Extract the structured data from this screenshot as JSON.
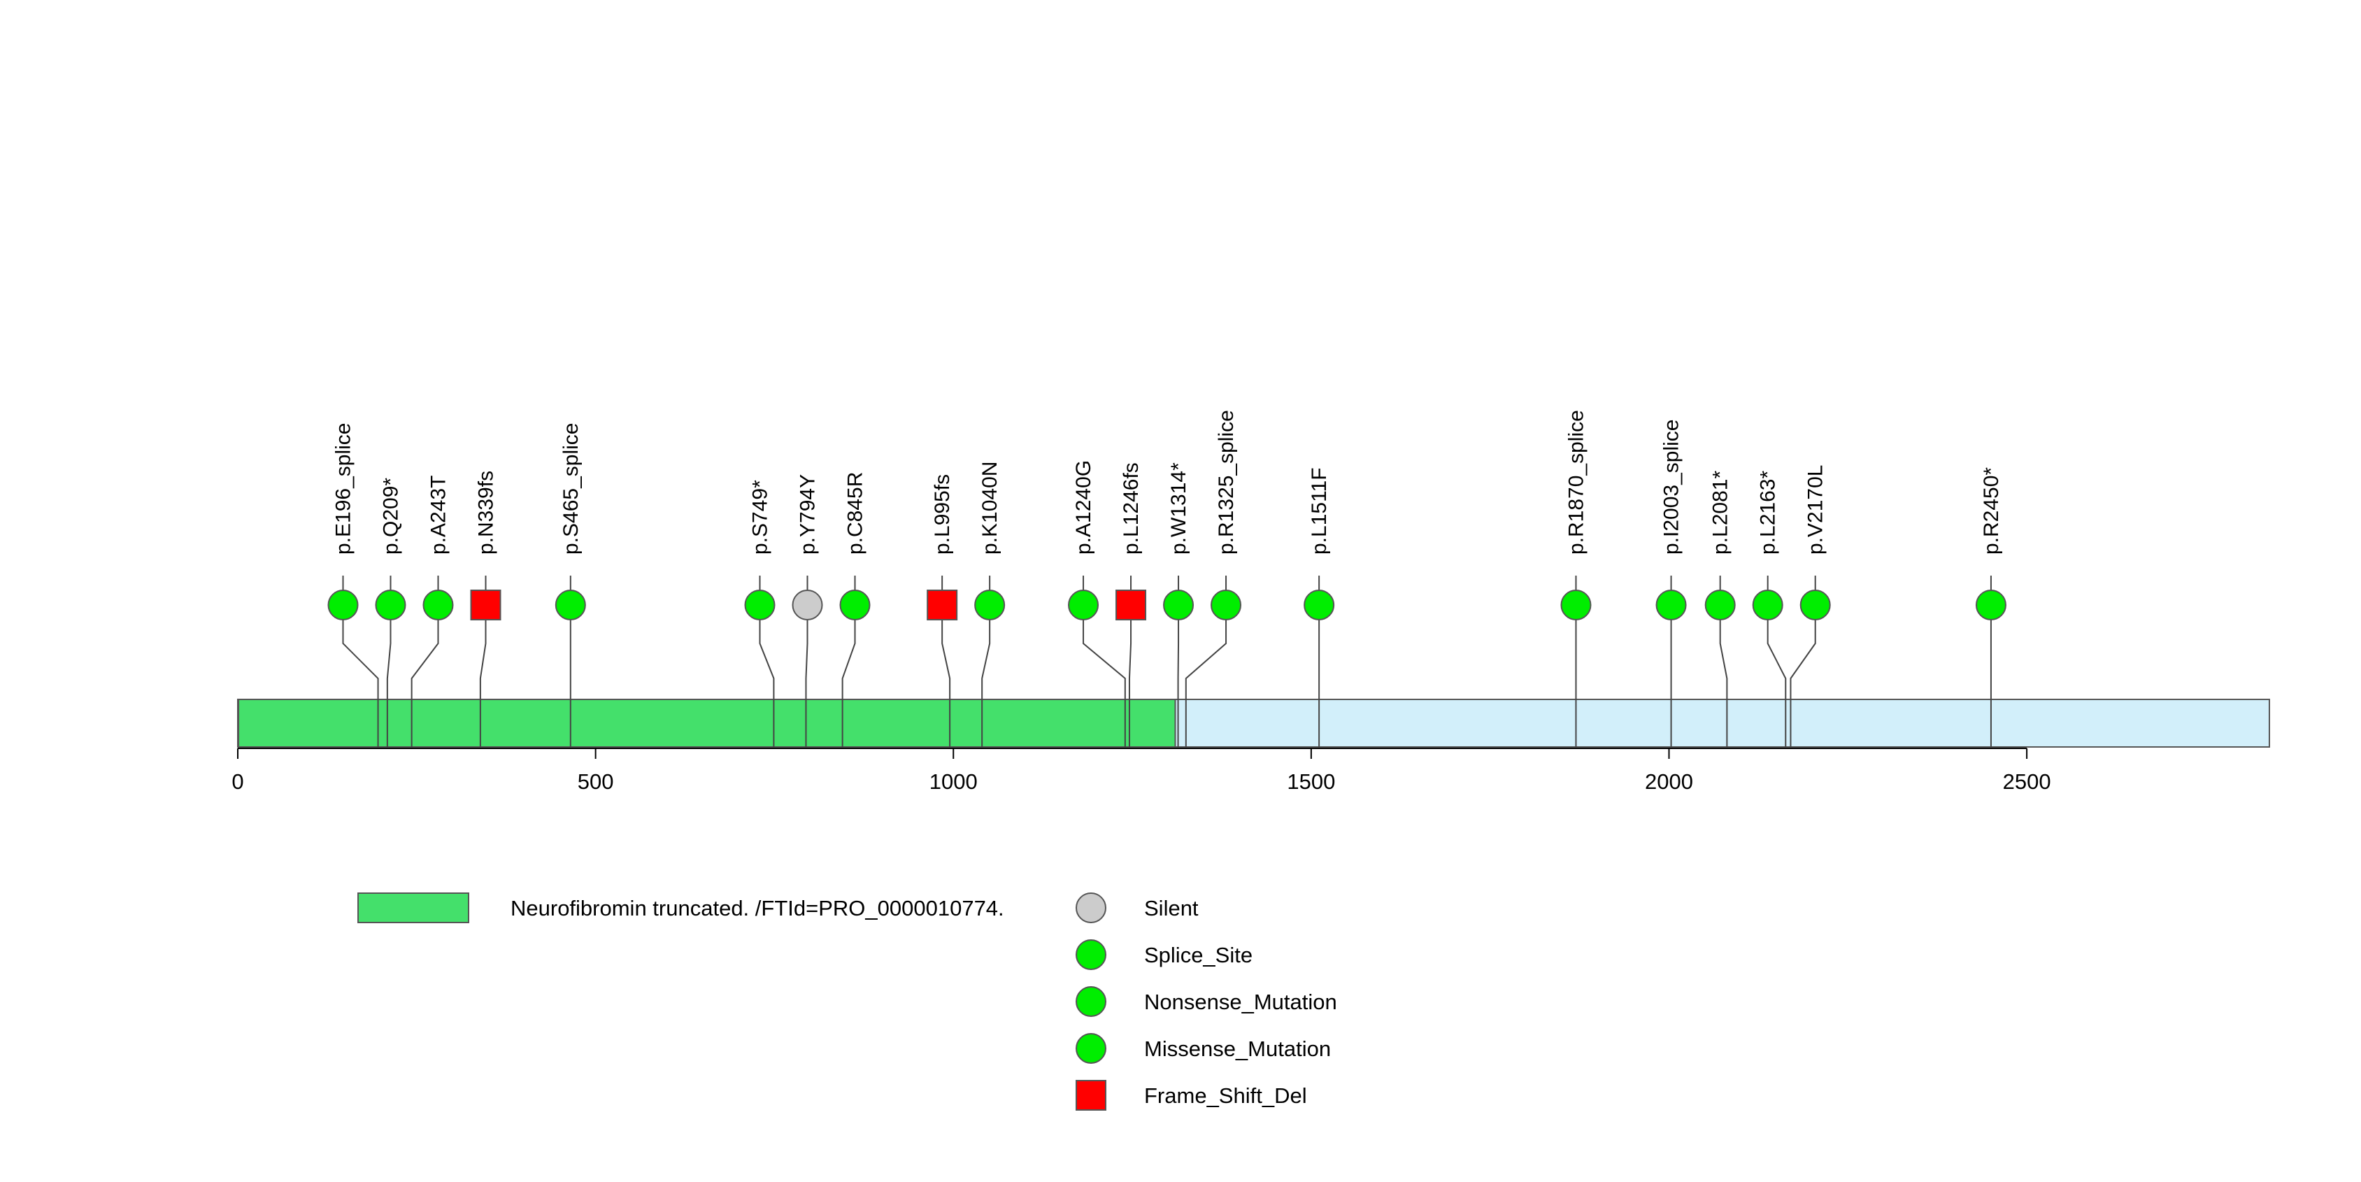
{
  "chart_data": {
    "type": "lollipop",
    "x_axis": {
      "min": 0,
      "max": 2839,
      "ticks": [
        0,
        500,
        1000,
        1500,
        2000,
        2500
      ],
      "tick_labels": [
        "0",
        "500",
        "1000",
        "1500",
        "2000",
        "2500"
      ]
    },
    "protein": {
      "length": 2839,
      "domains": [
        {
          "name": "Neurofibromin truncated. /FTId=PRO_0000010774.",
          "start": 1,
          "end": 1310,
          "color": "#44e06b"
        }
      ],
      "remainder_color": "#d2effa"
    },
    "mutations": [
      {
        "label": "p.E196_splice",
        "position": 196,
        "type": "Splice_Site"
      },
      {
        "label": "p.Q209*",
        "position": 209,
        "type": "Nonsense_Mutation"
      },
      {
        "label": "p.A243T",
        "position": 243,
        "type": "Missense_Mutation"
      },
      {
        "label": "p.N339fs",
        "position": 339,
        "type": "Frame_Shift_Del"
      },
      {
        "label": "p.S465_splice",
        "position": 465,
        "type": "Splice_Site"
      },
      {
        "label": "p.S749*",
        "position": 749,
        "type": "Nonsense_Mutation"
      },
      {
        "label": "p.Y794Y",
        "position": 794,
        "type": "Silent"
      },
      {
        "label": "p.C845R",
        "position": 845,
        "type": "Missense_Mutation"
      },
      {
        "label": "p.L995fs",
        "position": 995,
        "type": "Frame_Shift_Del"
      },
      {
        "label": "p.K1040N",
        "position": 1040,
        "type": "Missense_Mutation"
      },
      {
        "label": "p.A1240G",
        "position": 1240,
        "type": "Missense_Mutation"
      },
      {
        "label": "p.L1246fs",
        "position": 1246,
        "type": "Frame_Shift_Del"
      },
      {
        "label": "p.W1314*",
        "position": 1314,
        "type": "Nonsense_Mutation"
      },
      {
        "label": "p.R1325_splice",
        "position": 1325,
        "type": "Splice_Site"
      },
      {
        "label": "p.L1511F",
        "position": 1511,
        "type": "Missense_Mutation"
      },
      {
        "label": "p.R1870_splice",
        "position": 1870,
        "type": "Splice_Site"
      },
      {
        "label": "p.I2003_splice",
        "position": 2003,
        "type": "Splice_Site"
      },
      {
        "label": "p.L2081*",
        "position": 2081,
        "type": "Nonsense_Mutation"
      },
      {
        "label": "p.L2163*",
        "position": 2163,
        "type": "Nonsense_Mutation"
      },
      {
        "label": "p.V2170L",
        "position": 2170,
        "type": "Missense_Mutation"
      },
      {
        "label": "p.R2450*",
        "position": 2450,
        "type": "Nonsense_Mutation"
      }
    ],
    "legend": {
      "placement": "bottom",
      "domains": [
        {
          "label": "Neurofibromin truncated. /FTId=PRO_0000010774.",
          "color": "#44e06b"
        }
      ],
      "mutation_types": [
        {
          "label": "Silent",
          "shape": "circle",
          "color": "#cccccc"
        },
        {
          "label": "Splice_Site",
          "shape": "circle",
          "color": "#00ee00"
        },
        {
          "label": "Nonsense_Mutation",
          "shape": "circle",
          "color": "#00ee00"
        },
        {
          "label": "Missense_Mutation",
          "shape": "circle",
          "color": "#00ee00"
        },
        {
          "label": "Frame_Shift_Del",
          "shape": "square",
          "color": "#ff0000"
        }
      ]
    }
  }
}
